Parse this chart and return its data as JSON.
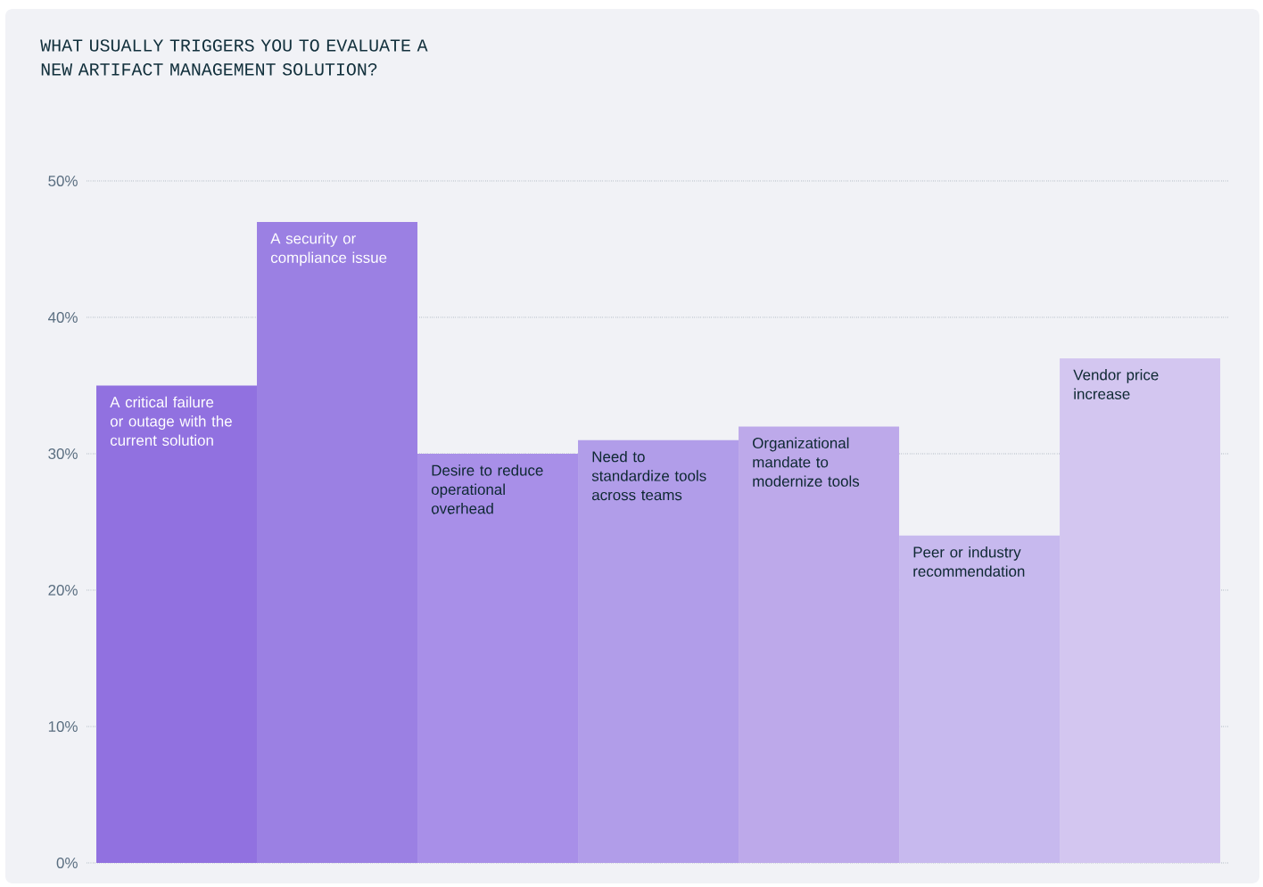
{
  "chart_data": {
    "type": "bar",
    "title": "WHAT USUALLY TRIGGERS YOU TO EVALUATE A NEW ARTIFACT MANAGEMENT SOLUTION?",
    "categories": [
      "A critical failure or outage with the current solution",
      "A security or compliance issue",
      "Desire to reduce operational overhead",
      "Need to standardize tools across teams",
      "Organizational mandate to modernize tools",
      "Peer or industry recommendation",
      "Vendor price increase"
    ],
    "values": [
      35,
      47,
      30,
      31,
      32,
      24,
      37
    ],
    "colors": [
      "#9171e0",
      "#9b80e3",
      "#a88fe8",
      "#b19de9",
      "#bda9ea",
      "#c7b9ee",
      "#d3c6f0"
    ],
    "ylim": [
      0,
      50
    ],
    "yticks": [
      {
        "value": 0,
        "label": "0%"
      },
      {
        "value": 10,
        "label": "10%"
      },
      {
        "value": 20,
        "label": "20%"
      },
      {
        "value": 30,
        "label": "30%"
      },
      {
        "value": 40,
        "label": "40%"
      },
      {
        "value": 50,
        "label": "50%"
      }
    ],
    "grid": "y"
  }
}
